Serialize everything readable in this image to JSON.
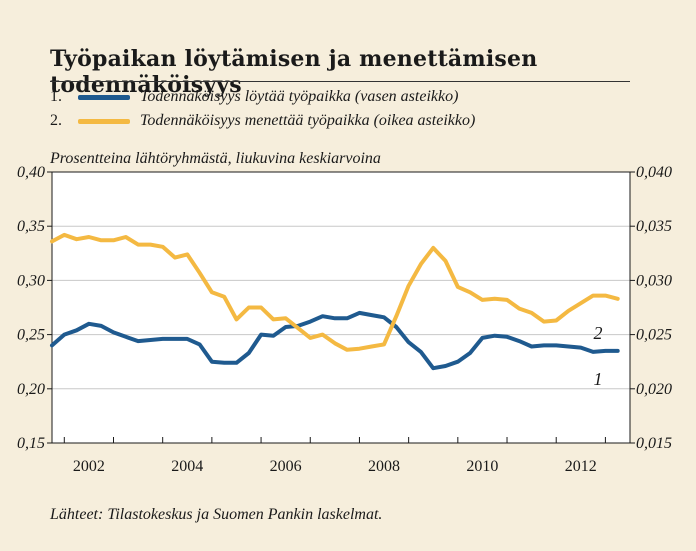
{
  "chart_data": {
    "type": "line",
    "title": "Työpaikan löytämisen ja menettämisen todennäköisyys",
    "subtitle": "Prosentteina lähtöryhmästä, liukuvina keskiarvoina",
    "source": "Lähteet: Tilastokeskus ja Suomen Pankin laskelmat.",
    "x_ticks": [
      "2002",
      "2004",
      "2006",
      "2008",
      "2010",
      "2012"
    ],
    "x_tick_values": [
      2002,
      2004,
      2006,
      2008,
      2010,
      2012
    ],
    "xlim": [
      2001.75,
      2013.5
    ],
    "left_axis": {
      "ylim": [
        0.15,
        0.4
      ],
      "ticks": [
        "0,15",
        "0,20",
        "0,25",
        "0,30",
        "0,35",
        "0,40"
      ],
      "tick_values": [
        0.15,
        0.2,
        0.25,
        0.3,
        0.35,
        0.4
      ]
    },
    "right_axis": {
      "ylim": [
        0.015,
        0.04
      ],
      "ticks": [
        "0,015",
        "0,020",
        "0,025",
        "0,030",
        "0,035",
        "0,040"
      ],
      "tick_values": [
        0.015,
        0.02,
        0.025,
        0.03,
        0.035,
        0.04
      ]
    },
    "grid": "horizontal",
    "series": [
      {
        "name": "Todennäköisyys löytää työpaikka (vasen asteikko)",
        "number": "1.",
        "label": "1",
        "axis": "left",
        "color": "#1f5a8f",
        "x": [
          2001.75,
          2002.0,
          2002.25,
          2002.5,
          2002.75,
          2003.0,
          2003.25,
          2003.5,
          2003.75,
          2004.0,
          2004.25,
          2004.5,
          2004.75,
          2005.0,
          2005.25,
          2005.5,
          2005.75,
          2006.0,
          2006.25,
          2006.5,
          2006.75,
          2007.0,
          2007.25,
          2007.5,
          2007.75,
          2008.0,
          2008.25,
          2008.5,
          2008.75,
          2009.0,
          2009.25,
          2009.5,
          2009.75,
          2010.0,
          2010.25,
          2010.5,
          2010.75,
          2011.0,
          2011.25,
          2011.5,
          2011.75,
          2012.0,
          2012.25,
          2012.5,
          2012.75,
          2013.0,
          2013.25
        ],
        "values": [
          0.24,
          0.25,
          0.254,
          0.26,
          0.258,
          0.252,
          0.248,
          0.244,
          0.245,
          0.246,
          0.246,
          0.246,
          0.241,
          0.225,
          0.224,
          0.224,
          0.233,
          0.25,
          0.249,
          0.257,
          0.258,
          0.262,
          0.267,
          0.265,
          0.265,
          0.27,
          0.268,
          0.266,
          0.257,
          0.243,
          0.234,
          0.219,
          0.221,
          0.225,
          0.233,
          0.247,
          0.249,
          0.248,
          0.244,
          0.239,
          0.24,
          0.24,
          0.239,
          0.238,
          0.234,
          0.235,
          0.235
        ]
      },
      {
        "name": "Todennäköisyys menettää työpaikka (oikea asteikko)",
        "number": "2.",
        "label": "2",
        "axis": "right",
        "color": "#f4b942",
        "x": [
          2001.75,
          2002.0,
          2002.25,
          2002.5,
          2002.75,
          2003.0,
          2003.25,
          2003.5,
          2003.75,
          2004.0,
          2004.25,
          2004.5,
          2004.75,
          2005.0,
          2005.25,
          2005.5,
          2005.75,
          2006.0,
          2006.25,
          2006.5,
          2006.75,
          2007.0,
          2007.25,
          2007.5,
          2007.75,
          2008.0,
          2008.25,
          2008.5,
          2008.75,
          2009.0,
          2009.25,
          2009.5,
          2009.75,
          2010.0,
          2010.25,
          2010.5,
          2010.75,
          2011.0,
          2011.25,
          2011.5,
          2011.75,
          2012.0,
          2012.25,
          2012.5,
          2012.75,
          2013.0,
          2013.25
        ],
        "values": [
          0.0336,
          0.0342,
          0.0338,
          0.034,
          0.0337,
          0.0337,
          0.034,
          0.0333,
          0.0333,
          0.0331,
          0.0321,
          0.0324,
          0.0307,
          0.0289,
          0.0285,
          0.0264,
          0.0275,
          0.0275,
          0.0264,
          0.0265,
          0.0256,
          0.0247,
          0.025,
          0.0242,
          0.0236,
          0.0237,
          0.0239,
          0.0241,
          0.0267,
          0.0295,
          0.0315,
          0.033,
          0.0318,
          0.0294,
          0.0289,
          0.0282,
          0.0283,
          0.0282,
          0.0274,
          0.027,
          0.0262,
          0.0263,
          0.0272,
          0.0279,
          0.0286,
          0.0286,
          0.0283
        ]
      }
    ]
  }
}
